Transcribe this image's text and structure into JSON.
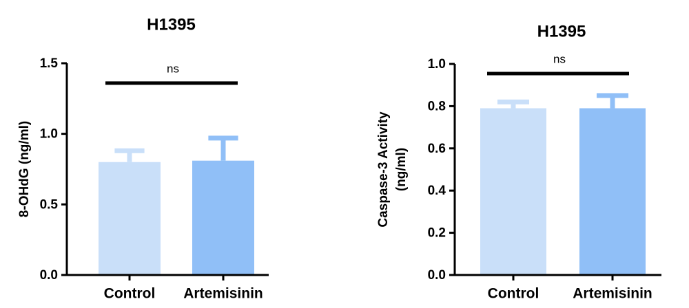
{
  "chart_data": [
    {
      "type": "bar",
      "title": "H1395",
      "ylabel": [
        "8-OHdG  (ng/ml)"
      ],
      "categories": [
        "Control",
        "Artemisinin"
      ],
      "values": [
        0.8,
        0.81
      ],
      "errors": [
        0.08,
        0.16
      ],
      "colors": [
        "#c9dff9",
        "#90bff7"
      ],
      "ylim": [
        0,
        1.5
      ],
      "yticks": [
        {
          "value": 0,
          "label": "0.0"
        },
        0.5,
        {
          "value": 1,
          "label": "1.0"
        },
        1.5
      ],
      "annotation": "ns"
    },
    {
      "type": "bar",
      "title": "H1395",
      "ylabel": [
        "Caspase-3 Activity",
        "(ng/ml)"
      ],
      "categories": [
        "Control",
        "Artemisinin"
      ],
      "values": [
        0.79,
        0.79
      ],
      "errors": [
        0.03,
        0.06
      ],
      "colors": [
        "#c9dff9",
        "#90bff7"
      ],
      "ylim": [
        0,
        1.0
      ],
      "yticks": [
        {
          "value": 0,
          "label": "0.0"
        },
        0.2,
        0.4,
        0.6,
        0.8,
        {
          "value": 1,
          "label": "1.0"
        }
      ],
      "annotation": "ns"
    }
  ]
}
